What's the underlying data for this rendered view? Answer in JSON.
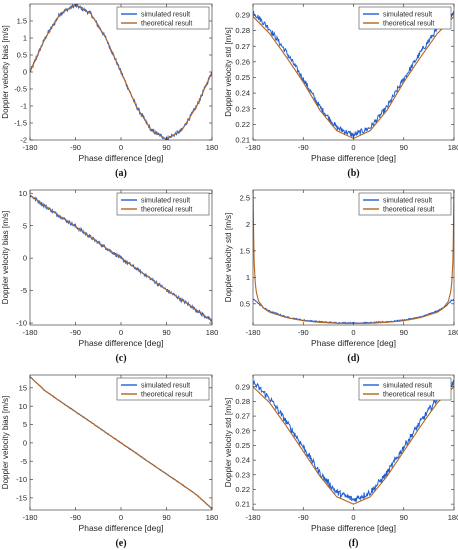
{
  "colors": {
    "simulated": "#1f5fd6",
    "theoretical": "#b5651d",
    "axis": "#262626",
    "grid": "#e6e6e6",
    "legend_border": "#262626"
  },
  "chart_data": [
    {
      "id": "a",
      "caption": "(a)",
      "type": "line",
      "xlabel": "Phase difference [deg]",
      "ylabel": "Doppler velocity bias [m/s]",
      "xlim": [
        -180,
        180
      ],
      "ylim": [
        -2,
        2
      ],
      "xticks": [
        -180,
        -90,
        0,
        90,
        180
      ],
      "xtick_labels": [
        "-180",
        "-90",
        "0",
        "90",
        "180"
      ],
      "yticks": [
        -2,
        -1.5,
        -1,
        -0.5,
        0,
        0.5,
        1,
        1.5
      ],
      "ytick_labels": [
        "-2",
        "-1.5",
        "-1",
        "-0.5",
        "0",
        "0.5",
        "1",
        "1.5"
      ],
      "legend_position": "top-right",
      "series": [
        {
          "name": "simulated result",
          "x": [
            -180,
            -150,
            -120,
            -90,
            -60,
            -30,
            0,
            30,
            60,
            90,
            120,
            150,
            180
          ],
          "y": [
            0.0,
            1.0,
            1.72,
            1.97,
            1.72,
            1.0,
            0.0,
            -1.0,
            -1.72,
            -1.97,
            -1.72,
            -1.0,
            0.0
          ],
          "noise": 0.06
        },
        {
          "name": "theoretical result",
          "x": [
            -180,
            -150,
            -120,
            -90,
            -60,
            -30,
            0,
            30,
            60,
            90,
            120,
            150,
            180
          ],
          "y": [
            0.0,
            1.0,
            1.72,
            1.97,
            1.72,
            1.0,
            0.0,
            -1.0,
            -1.72,
            -1.97,
            -1.72,
            -1.0,
            0.0
          ]
        }
      ]
    },
    {
      "id": "b",
      "caption": "(b)",
      "type": "line",
      "xlabel": "Phase difference [deg]",
      "ylabel": "Doppler velocity std [m/s]",
      "xlim": [
        -180,
        180
      ],
      "ylim": [
        0.21,
        0.297
      ],
      "xticks": [
        -180,
        -90,
        0,
        90,
        180
      ],
      "xtick_labels": [
        "-180",
        "-90",
        "0",
        "90",
        "180"
      ],
      "yticks": [
        0.21,
        0.22,
        0.23,
        0.24,
        0.25,
        0.26,
        0.27,
        0.28,
        0.29
      ],
      "ytick_labels": [
        "0.21",
        "0.22",
        "0.23",
        "0.24",
        "0.25",
        "0.26",
        "0.27",
        "0.28",
        "0.29"
      ],
      "legend_position": "top-right",
      "series": [
        {
          "name": "simulated result",
          "x": [
            -180,
            -150,
            -120,
            -90,
            -60,
            -30,
            0,
            30,
            60,
            90,
            120,
            150,
            180
          ],
          "y": [
            0.292,
            0.281,
            0.266,
            0.249,
            0.231,
            0.218,
            0.213,
            0.218,
            0.231,
            0.249,
            0.266,
            0.281,
            0.292
          ],
          "noise": 0.0018
        },
        {
          "name": "theoretical result",
          "x": [
            -180,
            -150,
            -120,
            -90,
            -60,
            -30,
            0,
            30,
            60,
            90,
            120,
            150,
            180
          ],
          "y": [
            0.289,
            0.278,
            0.263,
            0.247,
            0.229,
            0.216,
            0.211,
            0.216,
            0.229,
            0.247,
            0.263,
            0.278,
            0.289
          ]
        }
      ]
    },
    {
      "id": "c",
      "caption": "(c)",
      "type": "line",
      "xlabel": "Phase difference [deg]",
      "ylabel": "Doppler velocity bias [m/s]",
      "xlim": [
        -180,
        180
      ],
      "ylim": [
        -10.3,
        10.5
      ],
      "xticks": [
        -180,
        -90,
        0,
        90,
        180
      ],
      "xtick_labels": [
        "-180",
        "-90",
        "0",
        "90",
        "180"
      ],
      "yticks": [
        -10,
        -5,
        0,
        5,
        10
      ],
      "ytick_labels": [
        "-10",
        "-5",
        "0",
        "5",
        "10"
      ],
      "legend_position": "top-right",
      "series": [
        {
          "name": "simulated result",
          "x": [
            -180,
            -135,
            -90,
            -45,
            0,
            45,
            90,
            135,
            180
          ],
          "y": [
            9.7,
            7.2,
            4.9,
            2.4,
            0.0,
            -2.4,
            -4.9,
            -7.2,
            -9.7
          ],
          "noise": 0.28
        },
        {
          "name": "theoretical result",
          "x": [
            -180,
            -135,
            -90,
            -45,
            0,
            45,
            90,
            135,
            180
          ],
          "y": [
            9.7,
            7.2,
            4.9,
            2.4,
            0.0,
            -2.4,
            -4.9,
            -7.2,
            -9.7
          ]
        }
      ]
    },
    {
      "id": "d",
      "caption": "(d)",
      "type": "line",
      "xlabel": "Phase difference [deg]",
      "ylabel": "Doppler velocity std [m/s]",
      "xlim": [
        -180,
        180
      ],
      "ylim": [
        0.1,
        2.65
      ],
      "xticks": [
        -180,
        -90,
        0,
        90,
        180
      ],
      "xtick_labels": [
        "-180",
        "-90",
        "0",
        "90",
        "180"
      ],
      "yticks": [
        0.5,
        1,
        1.5,
        2,
        2.5
      ],
      "ytick_labels": [
        "0.5",
        "1",
        "1.5",
        "2",
        "2.5"
      ],
      "legend_position": "top-right",
      "series": [
        {
          "name": "simulated result",
          "x": [
            -180,
            -175,
            -170,
            -160,
            -150,
            -120,
            -90,
            -60,
            -30,
            0,
            30,
            60,
            90,
            120,
            150,
            160,
            170,
            175,
            180
          ],
          "y": [
            0.58,
            0.56,
            0.5,
            0.42,
            0.36,
            0.25,
            0.19,
            0.16,
            0.14,
            0.14,
            0.14,
            0.16,
            0.19,
            0.25,
            0.36,
            0.42,
            0.5,
            0.56,
            0.58
          ],
          "noise": 0.012
        },
        {
          "name": "theoretical result",
          "x": [
            -180,
            -179,
            -178,
            -176,
            -174,
            -170,
            -160,
            -150,
            -120,
            -90,
            -60,
            -30,
            0,
            30,
            60,
            90,
            120,
            150,
            160,
            170,
            174,
            176,
            178,
            179,
            180
          ],
          "y": [
            2.65,
            1.9,
            1.3,
            0.9,
            0.72,
            0.55,
            0.41,
            0.34,
            0.24,
            0.18,
            0.15,
            0.135,
            0.13,
            0.135,
            0.15,
            0.18,
            0.24,
            0.34,
            0.41,
            0.55,
            0.72,
            0.9,
            1.3,
            1.9,
            2.65
          ]
        }
      ]
    },
    {
      "id": "e",
      "caption": "(e)",
      "type": "line",
      "xlabel": "Phase difference [deg]",
      "ylabel": "Doppler velocity bias [m/s]",
      "xlim": [
        -180,
        180
      ],
      "ylim": [
        -18.3,
        18.5
      ],
      "xticks": [
        -180,
        -90,
        0,
        90,
        180
      ],
      "xtick_labels": [
        "-180",
        "-90",
        "0",
        "90",
        "180"
      ],
      "yticks": [
        -15,
        -10,
        -5,
        0,
        5,
        10,
        15
      ],
      "ytick_labels": [
        "-15",
        "-10",
        "-5",
        "0",
        "5",
        "10",
        "15"
      ],
      "legend_position": "top-right",
      "series": [
        {
          "name": "simulated result",
          "x": [
            -180,
            -150,
            -120,
            -90,
            -60,
            -30,
            0,
            30,
            60,
            90,
            120,
            150,
            180
          ],
          "y": [
            18.0,
            14.2,
            11.3,
            8.5,
            5.7,
            2.8,
            0.0,
            -2.8,
            -5.7,
            -8.5,
            -11.3,
            -14.2,
            -18.0
          ],
          "noise": 0.12
        },
        {
          "name": "theoretical result",
          "x": [
            -180,
            -150,
            -120,
            -90,
            -60,
            -30,
            0,
            30,
            60,
            90,
            120,
            150,
            180
          ],
          "y": [
            18.0,
            14.2,
            11.3,
            8.5,
            5.7,
            2.8,
            0.0,
            -2.8,
            -5.7,
            -8.5,
            -11.3,
            -14.2,
            -18.0
          ]
        }
      ]
    },
    {
      "id": "f",
      "caption": "(f)",
      "type": "line",
      "xlabel": "Phase difference [deg]",
      "ylabel": "Doppler velocity std [m/s]",
      "xlim": [
        -180,
        180
      ],
      "ylim": [
        0.206,
        0.298
      ],
      "xticks": [
        -180,
        -90,
        0,
        90,
        180
      ],
      "xtick_labels": [
        "-180",
        "-90",
        "0",
        "90",
        "180"
      ],
      "yticks": [
        0.21,
        0.22,
        0.23,
        0.24,
        0.25,
        0.26,
        0.27,
        0.28,
        0.29
      ],
      "ytick_labels": [
        "0.21",
        "0.22",
        "0.23",
        "0.24",
        "0.25",
        "0.26",
        "0.27",
        "0.28",
        "0.29"
      ],
      "legend_position": "top-right",
      "series": [
        {
          "name": "simulated result",
          "x": [
            -180,
            -150,
            -120,
            -90,
            -60,
            -30,
            0,
            30,
            60,
            90,
            120,
            150,
            180
          ],
          "y": [
            0.293,
            0.282,
            0.266,
            0.249,
            0.231,
            0.218,
            0.213,
            0.218,
            0.231,
            0.249,
            0.266,
            0.282,
            0.293
          ],
          "noise": 0.0022
        },
        {
          "name": "theoretical result",
          "x": [
            -180,
            -150,
            -120,
            -90,
            -60,
            -30,
            0,
            30,
            60,
            90,
            120,
            150,
            180
          ],
          "y": [
            0.29,
            0.279,
            0.263,
            0.246,
            0.229,
            0.215,
            0.21,
            0.215,
            0.229,
            0.246,
            0.263,
            0.279,
            0.29
          ]
        }
      ]
    }
  ]
}
